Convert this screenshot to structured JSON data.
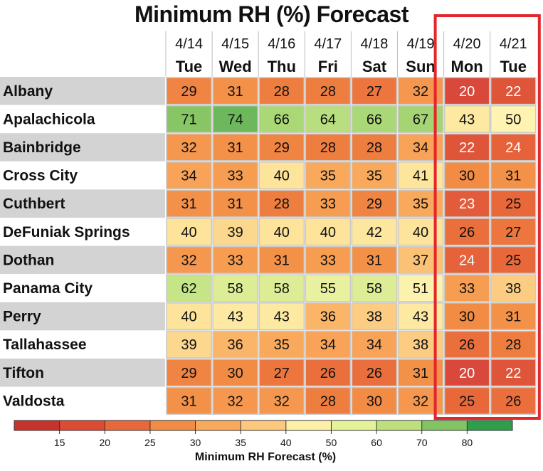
{
  "chart_data": {
    "type": "heatmap",
    "title": "Minimum RH (%) Forecast",
    "dates": [
      "4/14",
      "4/15",
      "4/16",
      "4/17",
      "4/18",
      "4/19",
      "4/20",
      "4/21"
    ],
    "days": [
      "Tue",
      "Wed",
      "Thu",
      "Fri",
      "Sat",
      "Sun",
      "Mon",
      "Tue"
    ],
    "rows": [
      {
        "name": "Albany",
        "values": [
          29,
          31,
          28,
          28,
          27,
          32,
          20,
          22
        ]
      },
      {
        "name": "Apalachicola",
        "values": [
          71,
          74,
          66,
          64,
          66,
          67,
          43,
          50
        ]
      },
      {
        "name": "Bainbridge",
        "values": [
          32,
          31,
          29,
          28,
          28,
          34,
          22,
          24
        ]
      },
      {
        "name": "Cross City",
        "values": [
          34,
          33,
          40,
          35,
          35,
          41,
          30,
          31
        ]
      },
      {
        "name": "Cuthbert",
        "values": [
          31,
          31,
          28,
          33,
          29,
          35,
          23,
          25
        ]
      },
      {
        "name": "DeFuniak Springs",
        "values": [
          40,
          39,
          40,
          40,
          42,
          40,
          26,
          27
        ]
      },
      {
        "name": "Dothan",
        "values": [
          32,
          33,
          31,
          33,
          31,
          37,
          24,
          25
        ]
      },
      {
        "name": "Panama City",
        "values": [
          62,
          58,
          58,
          55,
          58,
          51,
          33,
          38
        ]
      },
      {
        "name": "Perry",
        "values": [
          40,
          43,
          43,
          36,
          38,
          43,
          30,
          31
        ]
      },
      {
        "name": "Tallahassee",
        "values": [
          39,
          36,
          35,
          34,
          34,
          38,
          26,
          28
        ]
      },
      {
        "name": "Tifton",
        "values": [
          29,
          30,
          27,
          26,
          26,
          31,
          20,
          22
        ]
      },
      {
        "name": "Valdosta",
        "values": [
          31,
          32,
          32,
          28,
          30,
          32,
          25,
          26
        ]
      }
    ],
    "highlight_columns": [
      6,
      7
    ],
    "highlight_color": "#e3262a",
    "colorbar": {
      "title": "Minimum RH Forecast (%)",
      "ticks": [
        15,
        20,
        25,
        30,
        35,
        40,
        50,
        60,
        70,
        80
      ],
      "colors": [
        "#c8342b",
        "#dc4b32",
        "#e8683a",
        "#f28b44",
        "#f9a95c",
        "#fdc87e",
        "#fef0a8",
        "#e6f29a",
        "#bde07c",
        "#82c463",
        "#2e9e4a"
      ]
    }
  }
}
